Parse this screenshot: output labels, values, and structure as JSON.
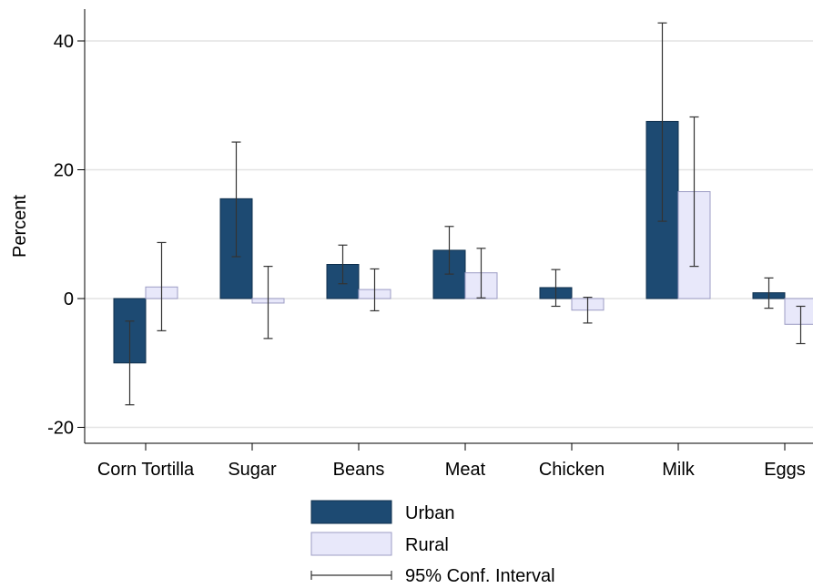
{
  "chart_data": {
    "type": "bar",
    "ylabel": "Percent",
    "xlabel": "",
    "ylim": [
      -22,
      45
    ],
    "yticks": [
      -20,
      0,
      20,
      40
    ],
    "grid": true,
    "legend_position": "bottom",
    "categories": [
      "Corn Tortilla",
      "Sugar",
      "Beans",
      "Meat",
      "Chicken",
      "Milk",
      "Eggs"
    ],
    "series": [
      {
        "name": "Urban",
        "color": "#1d4a72",
        "values": [
          -10,
          15.5,
          5.3,
          7.5,
          1.7,
          27.5,
          0.9
        ],
        "ci_low": [
          -16.5,
          6.5,
          2.3,
          3.8,
          -1.2,
          12.0,
          -1.5
        ],
        "ci_high": [
          -3.5,
          24.3,
          8.3,
          11.2,
          4.5,
          42.8,
          3.2
        ]
      },
      {
        "name": "Rural",
        "color": "#e8e8fa",
        "values": [
          1.8,
          -0.7,
          1.4,
          4.0,
          -1.8,
          16.6,
          -4.0
        ],
        "ci_low": [
          -5.0,
          -6.2,
          -1.9,
          0.1,
          -3.8,
          5.0,
          -7.0
        ],
        "ci_high": [
          8.7,
          5.0,
          4.6,
          7.8,
          0.2,
          28.2,
          -1.2
        ]
      }
    ],
    "ci_legend_label": "95% Conf. Interval"
  }
}
